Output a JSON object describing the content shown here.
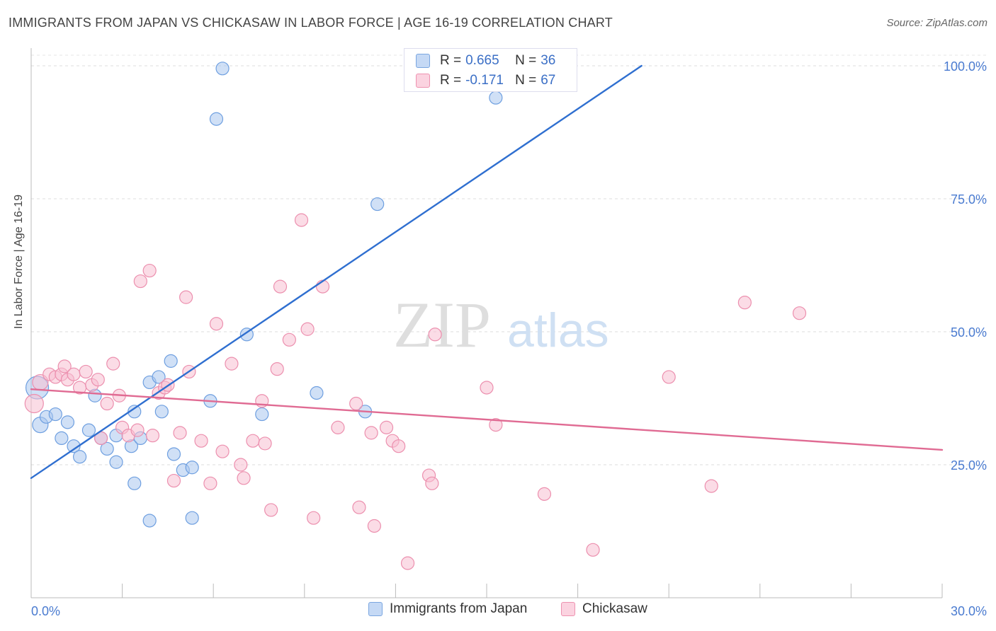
{
  "title": "IMMIGRANTS FROM JAPAN VS CHICKASAW IN LABOR FORCE | AGE 16-19 CORRELATION CHART",
  "source": "Source: ZipAtlas.com",
  "watermark": {
    "zip": "ZIP",
    "atlas": "atlas"
  },
  "legend_stats": [
    {
      "r_label": "R =",
      "r_value": "0.665",
      "n_label": "N =",
      "n_value": "36",
      "color": "#a9c6ef",
      "border": "#7aa6e0"
    },
    {
      "r_label": "R =",
      "r_value": "-0.171",
      "n_label": "N =",
      "n_value": "67",
      "color": "#f7bfd1",
      "border": "#ee92b0"
    }
  ],
  "chart_data": {
    "type": "scatter",
    "title": "IMMIGRANTS FROM JAPAN VS CHICKASAW IN LABOR FORCE | AGE 16-19 CORRELATION CHART",
    "xlabel": "",
    "ylabel": "In Labor Force | Age 16-19",
    "xlim": [
      0,
      30
    ],
    "ylim": [
      0,
      102
    ],
    "x_tick_labels": [
      "0.0%",
      "30.0%"
    ],
    "y_tick_values": [
      25,
      50,
      75,
      100
    ],
    "y_tick_labels": [
      "25.0%",
      "50.0%",
      "75.0%",
      "100.0%"
    ],
    "grid": "horizontal dashed",
    "legend_placement": "bottom-center",
    "series": [
      {
        "name": "Immigrants from Japan",
        "color": "#a9c6ef",
        "edge": "#6e9fe0",
        "trend": {
          "x": [
            0.0,
            20.1
          ],
          "y": [
            22.5,
            100.0
          ],
          "color": "#2f6fd0"
        },
        "points": [
          [
            0.2,
            39.5,
            16
          ],
          [
            0.3,
            32.5,
            11
          ],
          [
            0.5,
            34.0,
            9
          ],
          [
            0.8,
            34.5,
            9
          ],
          [
            1.0,
            30.0,
            9
          ],
          [
            1.2,
            33.0,
            9
          ],
          [
            1.4,
            28.5,
            9
          ],
          [
            1.6,
            26.5,
            9
          ],
          [
            1.9,
            31.5,
            9
          ],
          [
            2.1,
            38.0,
            9
          ],
          [
            2.3,
            30.0,
            9
          ],
          [
            2.5,
            28.0,
            9
          ],
          [
            2.8,
            25.5,
            9
          ],
          [
            2.8,
            30.5,
            9
          ],
          [
            3.3,
            28.5,
            9
          ],
          [
            3.4,
            21.5,
            9
          ],
          [
            3.4,
            35.0,
            9
          ],
          [
            3.6,
            30.0,
            9
          ],
          [
            3.9,
            14.5,
            9
          ],
          [
            3.9,
            40.5,
            9
          ],
          [
            4.2,
            41.5,
            9
          ],
          [
            4.3,
            35.0,
            9
          ],
          [
            4.6,
            44.5,
            9
          ],
          [
            4.7,
            27.0,
            9
          ],
          [
            5.0,
            24.0,
            9
          ],
          [
            5.3,
            24.5,
            9
          ],
          [
            5.3,
            15.0,
            9
          ],
          [
            5.9,
            37.0,
            9
          ],
          [
            6.1,
            90.0,
            9
          ],
          [
            6.3,
            99.5,
            9
          ],
          [
            7.1,
            49.5,
            9
          ],
          [
            7.6,
            34.5,
            9
          ],
          [
            9.4,
            38.5,
            9
          ],
          [
            11.0,
            35.0,
            9
          ],
          [
            11.4,
            74.0,
            9
          ],
          [
            15.3,
            94.0,
            9
          ]
        ]
      },
      {
        "name": "Chickasaw",
        "color": "#f7bfd1",
        "edge": "#ec8fae",
        "trend": {
          "x": [
            0.0,
            30.0
          ],
          "y": [
            39.2,
            27.8
          ],
          "color": "#e06b93"
        },
        "points": [
          [
            0.1,
            36.5,
            13
          ],
          [
            0.3,
            40.5,
            11
          ],
          [
            0.6,
            42.0,
            9
          ],
          [
            0.8,
            41.5,
            9
          ],
          [
            1.0,
            42.0,
            9
          ],
          [
            1.1,
            43.5,
            9
          ],
          [
            1.2,
            41.0,
            9
          ],
          [
            1.4,
            42.0,
            9
          ],
          [
            1.6,
            39.5,
            9
          ],
          [
            1.8,
            42.5,
            9
          ],
          [
            2.0,
            40.0,
            9
          ],
          [
            2.2,
            41.0,
            9
          ],
          [
            2.3,
            30.0,
            9
          ],
          [
            2.5,
            36.5,
            9
          ],
          [
            2.7,
            44.0,
            9
          ],
          [
            2.9,
            38.0,
            9
          ],
          [
            3.0,
            32.0,
            9
          ],
          [
            3.2,
            30.5,
            9
          ],
          [
            3.5,
            31.5,
            9
          ],
          [
            3.6,
            59.5,
            9
          ],
          [
            3.9,
            61.5,
            9
          ],
          [
            4.0,
            30.5,
            9
          ],
          [
            4.2,
            38.5,
            9
          ],
          [
            4.4,
            39.5,
            9
          ],
          [
            4.5,
            40.0,
            9
          ],
          [
            4.7,
            22.0,
            9
          ],
          [
            4.9,
            31.0,
            9
          ],
          [
            5.1,
            56.5,
            9
          ],
          [
            5.2,
            42.5,
            9
          ],
          [
            5.6,
            29.5,
            9
          ],
          [
            5.9,
            21.5,
            9
          ],
          [
            6.1,
            51.5,
            9
          ],
          [
            6.3,
            27.5,
            9
          ],
          [
            6.6,
            44.0,
            9
          ],
          [
            6.9,
            25.0,
            9
          ],
          [
            7.0,
            22.5,
            9
          ],
          [
            7.3,
            29.5,
            9
          ],
          [
            7.6,
            37.0,
            9
          ],
          [
            7.7,
            29.0,
            9
          ],
          [
            7.9,
            16.5,
            9
          ],
          [
            8.1,
            43.0,
            9
          ],
          [
            8.2,
            58.5,
            9
          ],
          [
            8.5,
            48.5,
            9
          ],
          [
            8.9,
            71.0,
            9
          ],
          [
            9.1,
            50.5,
            9
          ],
          [
            9.3,
            15.0,
            9
          ],
          [
            9.6,
            58.5,
            9
          ],
          [
            10.1,
            32.0,
            9
          ],
          [
            10.7,
            36.5,
            9
          ],
          [
            10.8,
            17.0,
            9
          ],
          [
            11.2,
            31.0,
            9
          ],
          [
            11.3,
            13.5,
            9
          ],
          [
            11.7,
            32.0,
            9
          ],
          [
            11.9,
            29.5,
            9
          ],
          [
            12.1,
            28.5,
            9
          ],
          [
            12.4,
            6.5,
            9
          ],
          [
            13.1,
            23.0,
            9
          ],
          [
            13.2,
            21.5,
            9
          ],
          [
            13.3,
            49.5,
            9
          ],
          [
            15.0,
            39.5,
            9
          ],
          [
            15.3,
            32.5,
            9
          ],
          [
            16.9,
            19.5,
            9
          ],
          [
            18.5,
            9.0,
            9
          ],
          [
            21.0,
            41.5,
            9
          ],
          [
            22.4,
            21.0,
            9
          ],
          [
            23.5,
            55.5,
            9
          ],
          [
            25.3,
            53.5,
            9
          ]
        ]
      }
    ]
  }
}
